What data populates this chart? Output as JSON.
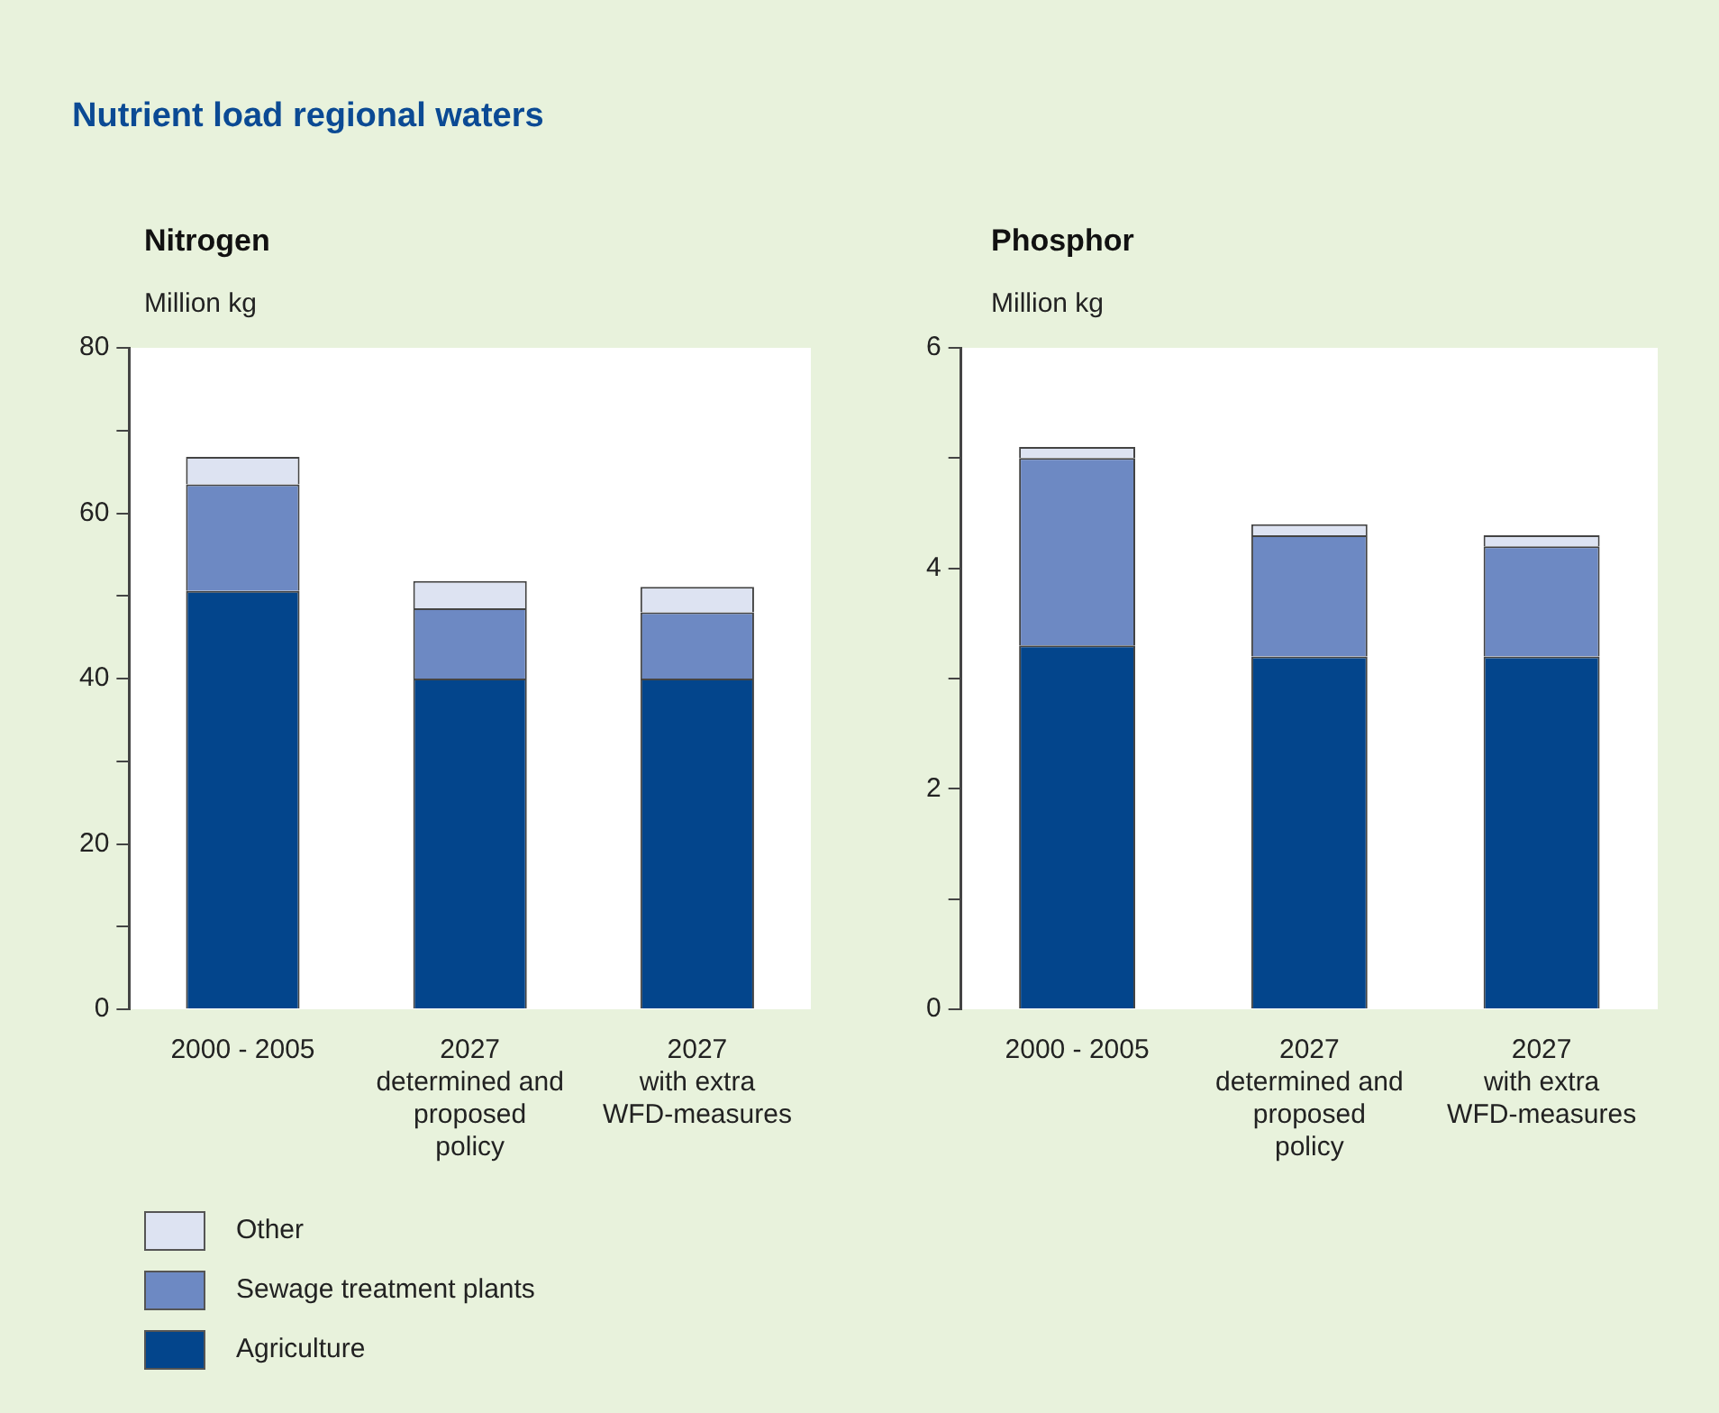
{
  "chart_data": [
    {
      "type": "bar",
      "title": "Nutrient load regional waters",
      "subtitle": "Nitrogen",
      "ylabel": "Million kg",
      "categories": [
        "2000 - 2005",
        "2027\ndetermined and\nproposed\npolicy",
        "2027\nwith extra\nWFD-measures"
      ],
      "stacked": true,
      "ylim": [
        0,
        80
      ],
      "yticks": [
        0,
        {
          "value": 10,
          "label": null
        },
        20,
        {
          "value": 30,
          "label": null
        },
        40,
        {
          "value": 50,
          "label": null
        },
        60,
        {
          "value": 70,
          "label": null
        },
        80
      ],
      "grid": false,
      "legend": "bottom",
      "series": [
        {
          "name": "Agriculture",
          "color": "#03458c",
          "values": [
            50.6,
            40,
            40
          ]
        },
        {
          "name": "Sewage treatment plants",
          "color": "#6d89c3",
          "values": [
            12.9,
            8.5,
            8.0
          ]
        },
        {
          "name": "Other",
          "color": "#dde3f2",
          "values": [
            3.3,
            3.3,
            3.1
          ]
        }
      ]
    },
    {
      "type": "bar",
      "subtitle": "Phosphor",
      "ylabel": "Million kg",
      "categories": [
        "2000 - 2005",
        "2027\ndetermined and\nproposed\npolicy",
        "2027\nwith extra\nWFD-measures"
      ],
      "stacked": true,
      "ylim": [
        0,
        6
      ],
      "yticks": [
        0,
        {
          "value": 1,
          "label": null
        },
        2,
        {
          "value": 3,
          "label": null
        },
        4,
        {
          "value": 5,
          "label": null
        },
        6
      ],
      "grid": false,
      "legend": false,
      "series": [
        {
          "color": "#03458c",
          "values": [
            3.3,
            3.2,
            3.2
          ]
        },
        {
          "color": "#6d89c3",
          "values": [
            1.7,
            1.1,
            1.0
          ]
        },
        {
          "color": "#dde3f2",
          "values": [
            0.1,
            0.1,
            0.1
          ]
        }
      ]
    }
  ]
}
